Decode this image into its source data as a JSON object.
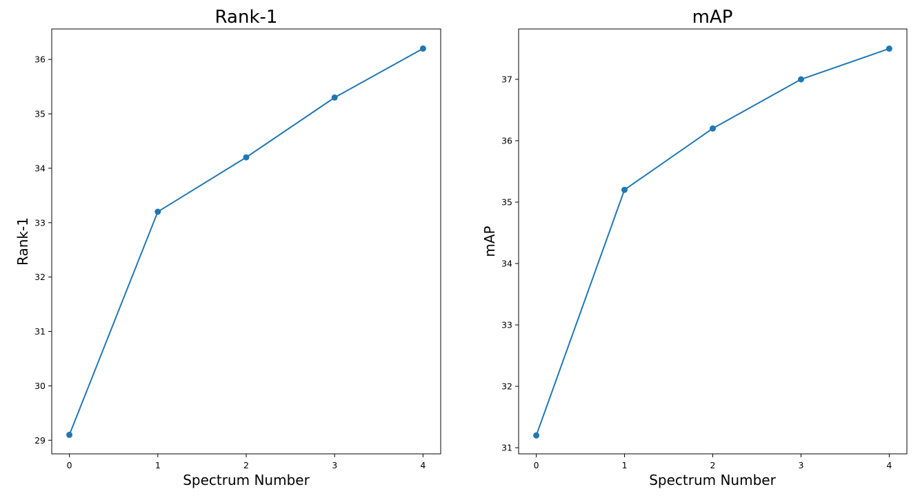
{
  "chart_data": [
    {
      "type": "line",
      "title": "Rank-1",
      "xlabel": "Spectrum Number",
      "ylabel": "Rank-1",
      "x": [
        0,
        1,
        2,
        3,
        4
      ],
      "values": [
        29.1,
        33.2,
        34.2,
        35.3,
        36.2
      ],
      "xlim": [
        -0.2,
        4.2
      ],
      "ylim": [
        28.75,
        36.56
      ],
      "xticks": [
        "0",
        "1",
        "2",
        "3",
        "4"
      ],
      "yticks": [
        "29",
        "30",
        "31",
        "32",
        "33",
        "34",
        "35",
        "36"
      ],
      "grid": false,
      "legend": "none",
      "marker": "circle",
      "color": "#1f77b4"
    },
    {
      "type": "line",
      "title": "mAP",
      "xlabel": "Spectrum Number",
      "ylabel": "mAP",
      "x": [
        0,
        1,
        2,
        3,
        4
      ],
      "values": [
        31.2,
        35.2,
        36.2,
        37.0,
        37.5
      ],
      "xlim": [
        -0.2,
        4.2
      ],
      "ylim": [
        30.9,
        37.82
      ],
      "xticks": [
        "0",
        "1",
        "2",
        "3",
        "4"
      ],
      "yticks": [
        "31",
        "32",
        "33",
        "34",
        "35",
        "36",
        "37"
      ],
      "grid": false,
      "legend": "none",
      "marker": "circle",
      "color": "#1f77b4"
    }
  ]
}
